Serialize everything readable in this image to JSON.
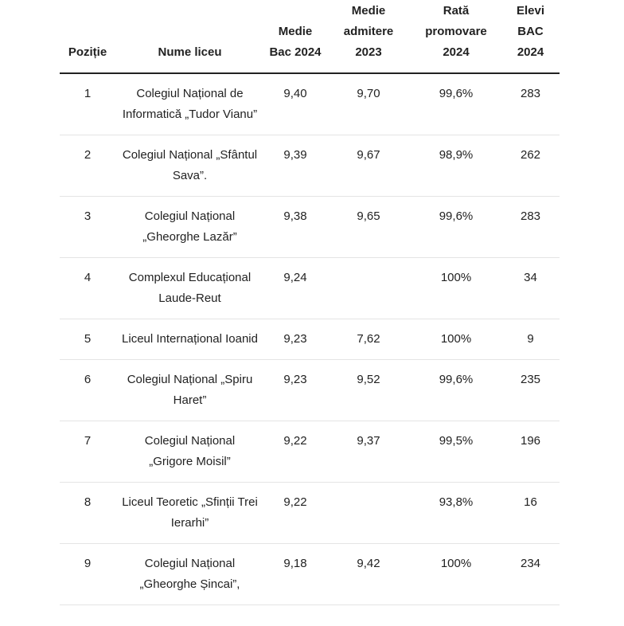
{
  "table": {
    "headers": [
      "Poziție",
      "Nume liceu",
      "Medie Bac 2024",
      "Medie admitere 2023",
      "Rată promovare 2024",
      "Elevi BAC 2024"
    ],
    "rows": [
      [
        "1",
        "Colegiul Național de Informatică „Tudor Vianu”",
        "9,40",
        "9,70",
        "99,6%",
        "283"
      ],
      [
        "2",
        "Colegiul Național „Sfântul Sava”.",
        "9,39",
        "9,67",
        "98,9%",
        "262"
      ],
      [
        "3",
        "Colegiul Național „Gheorghe Lazăr”",
        "9,38",
        "9,65",
        "99,6%",
        "283"
      ],
      [
        "4",
        "Complexul Educațional Laude-Reut",
        "9,24",
        null,
        "100%",
        "34"
      ],
      [
        "5",
        "Liceul Internațional Ioanid",
        "9,23",
        "7,62",
        "100%",
        "9"
      ],
      [
        "6",
        "Colegiul Național „Spiru Haret”",
        "9,23",
        "9,52",
        "99,6%",
        "235"
      ],
      [
        "7",
        "Colegiul Național „Grigore Moisil”",
        "9,22",
        "9,37",
        "99,5%",
        "196"
      ],
      [
        "8",
        "Liceul Teoretic „Sfinții Trei Ierarhi”",
        "9,22",
        null,
        "93,8%",
        "16"
      ],
      [
        "9",
        "Colegiul Național „Gheorghe Șincai”,",
        "9,18",
        "9,42",
        "100%",
        "234"
      ]
    ]
  }
}
